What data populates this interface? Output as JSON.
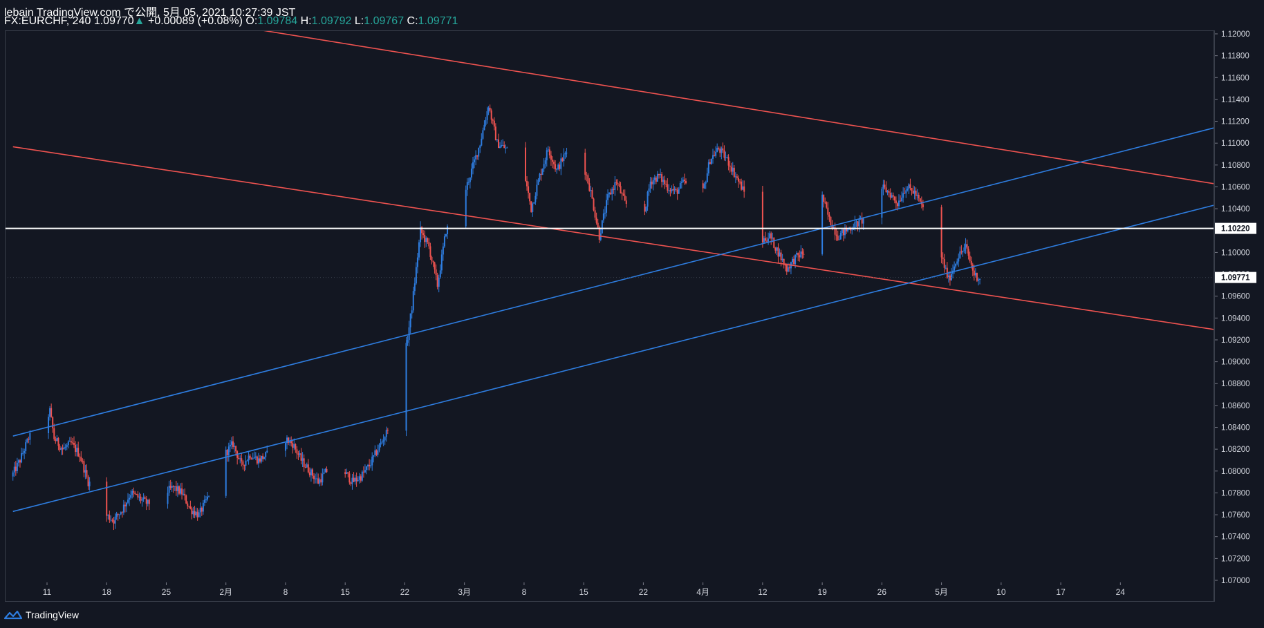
{
  "header": {
    "title": "lebain TradingView.com で公開, 5月 05, 2021 10:27:39 JST",
    "symbol": "FX:EURCHF, 240",
    "last": "1.09770",
    "change": "+0.00089 (+0.08%)",
    "o_label": "O:",
    "o_value": "1.09784",
    "h_label": "H:",
    "h_value": "1.09792",
    "l_label": "L:",
    "l_value": "1.09767",
    "c_label": "C:",
    "c_value": "1.09771"
  },
  "footer": {
    "brand": "TradingView"
  },
  "colors": {
    "background": "#131722",
    "up_candle": "#2e7de0",
    "down_candle": "#ef5350",
    "down_trendline": "#ef5350",
    "up_trendline": "#2e7de0",
    "horizontal_line": "#ffffff",
    "axis_text": "#d1d4dc"
  },
  "chart_data": {
    "type": "candlestick",
    "symbol": "FX:EURCHF",
    "timeframe": "240",
    "ylim": [
      1.07,
      1.12
    ],
    "y_ticks": [
      "1.07000",
      "1.07200",
      "1.07400",
      "1.07600",
      "1.07800",
      "1.08000",
      "1.08200",
      "1.08400",
      "1.08600",
      "1.08800",
      "1.09000",
      "1.09200",
      "1.09400",
      "1.09600",
      "1.09800",
      "1.10000",
      "1.10200",
      "1.10400",
      "1.10600",
      "1.10800",
      "1.11000",
      "1.11200",
      "1.11400",
      "1.11600",
      "1.11800",
      "1.12000"
    ],
    "x_ticks": [
      "11",
      "18",
      "25",
      "2月",
      "8",
      "15",
      "22",
      "3月",
      "8",
      "15",
      "22",
      "4月",
      "12",
      "19",
      "26",
      "5月",
      "10",
      "17",
      "24"
    ],
    "x_tick_days": [
      0,
      7,
      14,
      21,
      28,
      35,
      42,
      49,
      56,
      63,
      70,
      77,
      84,
      91,
      98,
      105,
      112,
      119,
      126
    ],
    "price_path": [
      [
        -4,
        1.0795
      ],
      [
        -3,
        1.081
      ],
      [
        -2,
        1.083
      ],
      [
        -1,
        1.0835
      ],
      [
        0,
        1.0845
      ],
      [
        0.5,
        1.0855
      ],
      [
        1,
        1.083
      ],
      [
        2,
        1.082
      ],
      [
        3,
        1.0825
      ],
      [
        4,
        1.0815
      ],
      [
        5,
        1.079
      ],
      [
        6,
        1.0785
      ],
      [
        7,
        1.076
      ],
      [
        8,
        1.0755
      ],
      [
        9,
        1.0765
      ],
      [
        10,
        1.078
      ],
      [
        11,
        1.0775
      ],
      [
        12,
        1.077
      ],
      [
        13,
        1.0775
      ],
      [
        14,
        1.078
      ],
      [
        15,
        1.0785
      ],
      [
        16,
        1.078
      ],
      [
        17,
        1.0765
      ],
      [
        18,
        1.076
      ],
      [
        19,
        1.0775
      ],
      [
        20,
        1.08
      ],
      [
        21,
        1.0815
      ],
      [
        22,
        1.0825
      ],
      [
        23,
        1.0805
      ],
      [
        24,
        1.0815
      ],
      [
        25,
        1.081
      ],
      [
        26,
        1.0815
      ],
      [
        27,
        1.082
      ],
      [
        28,
        1.083
      ],
      [
        29,
        1.0825
      ],
      [
        30,
        1.081
      ],
      [
        31,
        1.08
      ],
      [
        32,
        1.079
      ],
      [
        33,
        1.08
      ],
      [
        34,
        1.0805
      ],
      [
        35,
        1.08
      ],
      [
        36,
        1.079
      ],
      [
        37,
        1.0795
      ],
      [
        38,
        1.0805
      ],
      [
        39,
        1.082
      ],
      [
        40,
        1.0835
      ],
      [
        41,
        1.087
      ],
      [
        42,
        1.0895
      ],
      [
        43,
        1.095
      ],
      [
        44,
        1.102
      ],
      [
        45,
        1.1005
      ],
      [
        46,
        1.097
      ],
      [
        47,
        1.102
      ],
      [
        48,
        1.103
      ],
      [
        49,
        1.105
      ],
      [
        50,
        1.1075
      ],
      [
        51,
        1.11
      ],
      [
        52,
        1.1135
      ],
      [
        53,
        1.11
      ],
      [
        54,
        1.1095
      ],
      [
        55,
        1.109
      ],
      [
        56,
        1.108
      ],
      [
        57,
        1.104
      ],
      [
        58,
        1.107
      ],
      [
        59,
        1.1095
      ],
      [
        60,
        1.1075
      ],
      [
        61,
        1.109
      ],
      [
        62,
        1.11
      ],
      [
        63,
        1.1085
      ],
      [
        64,
        1.1055
      ],
      [
        65,
        1.1015
      ],
      [
        66,
        1.105
      ],
      [
        67,
        1.1065
      ],
      [
        68,
        1.1045
      ],
      [
        69,
        1.104
      ],
      [
        70,
        1.1025
      ],
      [
        71,
        1.1065
      ],
      [
        72,
        1.107
      ],
      [
        73,
        1.106
      ],
      [
        74,
        1.1055
      ],
      [
        75,
        1.1065
      ],
      [
        76,
        1.1045
      ],
      [
        77,
        1.105
      ],
      [
        78,
        1.1085
      ],
      [
        79,
        1.1095
      ],
      [
        80,
        1.1085
      ],
      [
        81,
        1.107
      ],
      [
        82,
        1.1055
      ],
      [
        83,
        1.1035
      ],
      [
        84,
        1.101
      ],
      [
        85,
        1.1015
      ],
      [
        86,
        1.1
      ],
      [
        87,
        1.0985
      ],
      [
        88,
        1.0995
      ],
      [
        89,
        1.1
      ],
      [
        90,
        1.106
      ],
      [
        91,
        1.1055
      ],
      [
        92,
        1.103
      ],
      [
        93,
        1.1015
      ],
      [
        94,
        1.102
      ],
      [
        95,
        1.1025
      ],
      [
        96,
        1.103
      ],
      [
        97,
        1.104
      ],
      [
        98,
        1.106
      ],
      [
        99,
        1.1055
      ],
      [
        100,
        1.1045
      ],
      [
        101,
        1.106
      ],
      [
        102,
        1.1055
      ],
      [
        103,
        1.104
      ],
      [
        104,
        1.1015
      ],
      [
        105,
        1.1
      ],
      [
        106,
        1.0975
      ],
      [
        107,
        1.0995
      ],
      [
        108,
        1.1005
      ],
      [
        109,
        1.098
      ],
      [
        109.5,
        1.0977
      ]
    ],
    "trendlines": [
      {
        "color": "down",
        "from": [
          -4,
          1.10967
        ],
        "to": [
          156,
          1.0907
        ]
      },
      {
        "color": "down",
        "from": [
          -4,
          1.124
        ],
        "to": [
          156,
          1.1039
        ]
      },
      {
        "color": "up",
        "from": [
          -4,
          1.0763
        ],
        "to": [
          156,
          1.1081
        ]
      },
      {
        "color": "up",
        "from": [
          -4,
          1.0832
        ],
        "to": [
          156,
          1.1152
        ]
      }
    ],
    "horizontal_line": {
      "value": 1.1022,
      "label": "1.10220"
    },
    "last_price_label": "1.09771",
    "last_price": 1.09771
  }
}
